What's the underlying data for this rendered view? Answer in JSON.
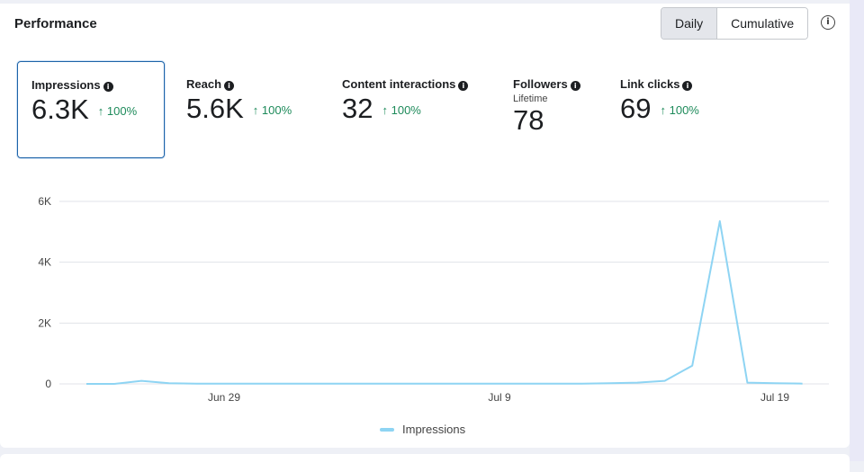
{
  "section": {
    "title": "Performance",
    "toggle": {
      "daily": "Daily",
      "cumulative": "Cumulative"
    },
    "info_icon": "i"
  },
  "metrics": [
    {
      "label": "Impressions",
      "value": "6.3K",
      "change": "100%",
      "arrow": "↑"
    },
    {
      "label": "Reach",
      "value": "5.6K",
      "change": "100%",
      "arrow": "↑"
    },
    {
      "label": "Content interactions",
      "value": "32",
      "change": "100%",
      "arrow": "↑"
    },
    {
      "label": "Followers",
      "sub": "Lifetime",
      "value": "78"
    },
    {
      "label": "Link clicks",
      "value": "69",
      "change": "100%",
      "arrow": "↑"
    }
  ],
  "colors": {
    "line": "#8ed4f3",
    "positive": "#1d8a5a",
    "selected_border": "#1d63a8"
  },
  "chart_data": {
    "type": "line",
    "title": "",
    "ylabel": "",
    "xlabel": "",
    "ylim": [
      0,
      6000
    ],
    "y_ticks": [
      "0",
      "2K",
      "4K",
      "6K"
    ],
    "y_tick_values": [
      0,
      2000,
      4000,
      6000
    ],
    "x_ticks": [
      "Jun 29",
      "Jul 9",
      "Jul 19"
    ],
    "x_tick_days": [
      5,
      15,
      25
    ],
    "series": [
      {
        "name": "Impressions",
        "x_days": [
          0,
          1,
          2,
          3,
          4,
          5,
          6,
          7,
          8,
          9,
          10,
          11,
          12,
          13,
          14,
          15,
          16,
          17,
          18,
          19,
          20,
          21,
          22,
          23,
          24,
          25,
          26
        ],
        "values": [
          0,
          0,
          100,
          20,
          10,
          10,
          10,
          10,
          10,
          10,
          10,
          10,
          10,
          10,
          10,
          10,
          10,
          10,
          10,
          20,
          40,
          100,
          600,
          5350,
          40,
          20,
          10
        ]
      }
    ],
    "legend": [
      "Impressions"
    ]
  }
}
